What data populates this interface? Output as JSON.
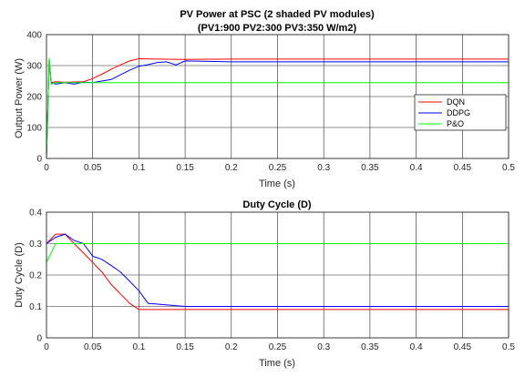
{
  "chart_data": [
    {
      "type": "line",
      "title": "PV Power at PSC (2 shaded PV modules)",
      "subtitle": "(PV1:900 PV2:300 PV3:350 W/m2)",
      "xlabel": "Time (s)",
      "ylabel": "Output Power (W)",
      "xlim": [
        0,
        0.5
      ],
      "ylim": [
        0,
        400
      ],
      "xticks": [
        "0",
        "0.05",
        "0.1",
        "0.15",
        "0.2",
        "0.25",
        "0.3",
        "0.35",
        "0.4",
        "0.45",
        "0.5"
      ],
      "yticks": [
        "0",
        "100",
        "200",
        "300",
        "400"
      ],
      "grid": true,
      "legend": "center-right",
      "series": [
        {
          "name": "DQN",
          "color": "#ff0000",
          "x": [
            0,
            0.003,
            0.005,
            0.01,
            0.02,
            0.04,
            0.05,
            0.06,
            0.07,
            0.08,
            0.09,
            0.1,
            0.12,
            0.15,
            0.2,
            0.25,
            0.3,
            0.35,
            0.4,
            0.45,
            0.5
          ],
          "y": [
            0,
            320,
            245,
            248,
            246,
            248,
            258,
            272,
            288,
            302,
            315,
            322,
            321,
            320,
            321,
            321,
            321,
            321,
            321,
            321,
            321
          ]
        },
        {
          "name": "DDPG",
          "color": "#0000ff",
          "x": [
            0,
            0.003,
            0.005,
            0.01,
            0.02,
            0.03,
            0.04,
            0.05,
            0.06,
            0.07,
            0.08,
            0.09,
            0.1,
            0.11,
            0.12,
            0.13,
            0.14,
            0.15,
            0.2,
            0.25,
            0.3,
            0.35,
            0.4,
            0.45,
            0.5
          ],
          "y": [
            0,
            320,
            245,
            240,
            245,
            240,
            246,
            245,
            250,
            255,
            270,
            285,
            298,
            303,
            310,
            312,
            302,
            315,
            312,
            312,
            312,
            312,
            312,
            312,
            312
          ]
        },
        {
          "name": "P&O",
          "color": "#00ff00",
          "x": [
            0,
            0.003,
            0.005,
            0.01,
            0.05,
            0.1,
            0.15,
            0.2,
            0.25,
            0.3,
            0.35,
            0.4,
            0.45,
            0.5
          ],
          "y": [
            0,
            325,
            240,
            245,
            245,
            245,
            245,
            245,
            245,
            245,
            245,
            245,
            245,
            245
          ]
        }
      ]
    },
    {
      "type": "line",
      "title": "Duty Cycle (D)",
      "xlabel": "Time (s)",
      "ylabel": "Duty Cycle (D)",
      "xlim": [
        0,
        0.5
      ],
      "ylim": [
        0,
        0.4
      ],
      "xticks": [
        "0",
        "0.05",
        "0.1",
        "0.15",
        "0.2",
        "0.25",
        "0.3",
        "0.35",
        "0.4",
        "0.45",
        "0.5"
      ],
      "yticks": [
        "0",
        "0.1",
        "0.2",
        "0.3",
        "0.4"
      ],
      "grid": true,
      "series": [
        {
          "color": "#ff0000",
          "x": [
            0,
            0.01,
            0.02,
            0.03,
            0.04,
            0.05,
            0.06,
            0.07,
            0.08,
            0.09,
            0.1,
            0.15,
            0.2,
            0.25,
            0.3,
            0.35,
            0.4,
            0.45,
            0.5
          ],
          "y": [
            0.3,
            0.33,
            0.33,
            0.3,
            0.27,
            0.24,
            0.21,
            0.17,
            0.14,
            0.11,
            0.09,
            0.09,
            0.09,
            0.09,
            0.09,
            0.09,
            0.09,
            0.09,
            0.09
          ]
        },
        {
          "color": "#0000ff",
          "x": [
            0,
            0.01,
            0.02,
            0.03,
            0.04,
            0.05,
            0.06,
            0.07,
            0.08,
            0.09,
            0.1,
            0.11,
            0.15,
            0.2,
            0.25,
            0.3,
            0.35,
            0.4,
            0.45,
            0.5
          ],
          "y": [
            0.3,
            0.32,
            0.33,
            0.31,
            0.3,
            0.26,
            0.25,
            0.23,
            0.21,
            0.18,
            0.15,
            0.11,
            0.1,
            0.1,
            0.1,
            0.1,
            0.1,
            0.1,
            0.1,
            0.1
          ]
        },
        {
          "color": "#00ff00",
          "x": [
            0,
            0.01,
            0.05,
            0.1,
            0.15,
            0.2,
            0.25,
            0.3,
            0.35,
            0.4,
            0.45,
            0.5
          ],
          "y": [
            0.24,
            0.3,
            0.3,
            0.3,
            0.3,
            0.3,
            0.3,
            0.3,
            0.3,
            0.3,
            0.3,
            0.3
          ]
        }
      ]
    }
  ]
}
